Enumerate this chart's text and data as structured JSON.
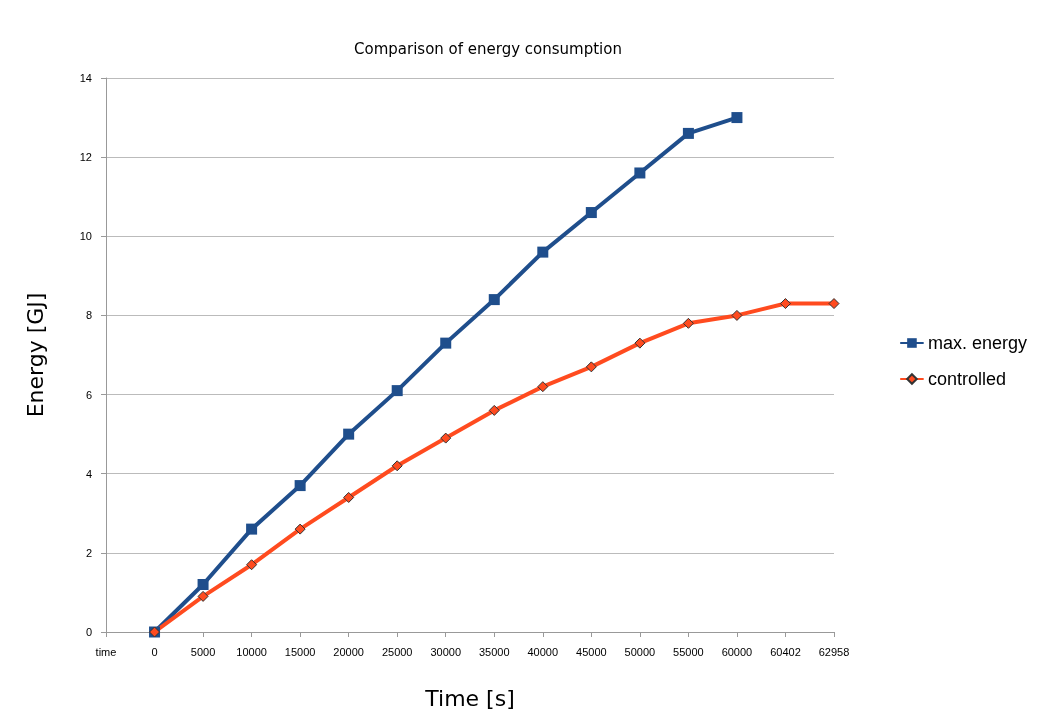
{
  "chart_data": {
    "type": "line",
    "title": "Comparison of energy consumption",
    "xlabel": "Time [s]",
    "ylabel": "Energy [GJ]",
    "categories": [
      "time",
      "0",
      "5000",
      "10000",
      "15000",
      "20000",
      "25000",
      "30000",
      "35000",
      "40000",
      "45000",
      "50000",
      "55000",
      "60000",
      "60402",
      "62958"
    ],
    "series": [
      {
        "name": "max. energy",
        "color": "#1f4e8c",
        "marker": "square",
        "values": [
          null,
          0,
          1.2,
          2.6,
          3.7,
          5.0,
          6.1,
          7.3,
          8.4,
          9.6,
          10.6,
          11.6,
          12.6,
          13.0,
          null,
          null
        ]
      },
      {
        "name": "controlled",
        "color": "#ff4b1f",
        "marker": "diamond",
        "values": [
          null,
          0,
          0.9,
          1.7,
          2.6,
          3.4,
          4.2,
          4.9,
          5.6,
          6.2,
          6.7,
          7.3,
          7.8,
          8.0,
          8.3,
          8.3
        ]
      }
    ],
    "ylim": [
      0,
      14
    ],
    "yticks": [
      0,
      2,
      4,
      6,
      8,
      10,
      12,
      14
    ],
    "grid": "y",
    "legend": "right",
    "line_style": "solid"
  }
}
